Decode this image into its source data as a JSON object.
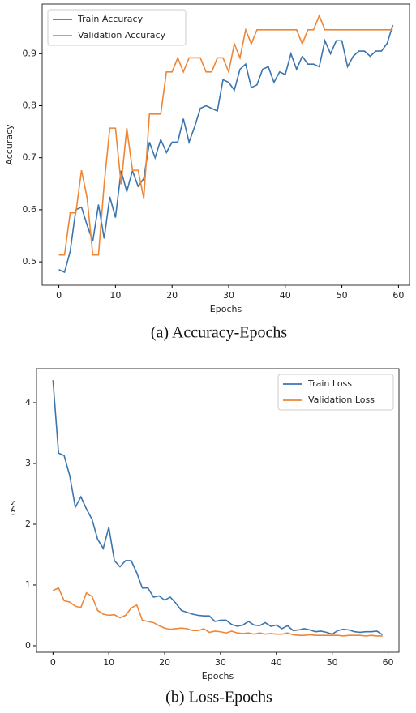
{
  "chart_data": [
    {
      "type": "line",
      "caption": "(a)  Accuracy-Epochs",
      "xlabel": "Epochs",
      "ylabel": "Accuracy",
      "x": [
        0,
        1,
        2,
        3,
        4,
        5,
        6,
        7,
        8,
        9,
        10,
        11,
        12,
        13,
        14,
        15,
        16,
        17,
        18,
        19,
        20,
        21,
        22,
        23,
        24,
        25,
        26,
        27,
        28,
        29,
        30,
        31,
        32,
        33,
        34,
        35,
        36,
        37,
        38,
        39,
        40,
        41,
        42,
        43,
        44,
        45,
        46,
        47,
        48,
        49,
        50,
        51,
        52,
        53,
        54,
        55,
        56,
        57,
        58,
        59
      ],
      "series": [
        {
          "name": "Train Accuracy",
          "color": "#3b75af",
          "values": [
            0.485,
            0.48,
            0.52,
            0.6,
            0.605,
            0.57,
            0.54,
            0.61,
            0.545,
            0.625,
            0.585,
            0.675,
            0.635,
            0.675,
            0.645,
            0.66,
            0.73,
            0.7,
            0.735,
            0.71,
            0.73,
            0.73,
            0.775,
            0.73,
            0.76,
            0.795,
            0.8,
            0.795,
            0.79,
            0.85,
            0.845,
            0.83,
            0.87,
            0.88,
            0.835,
            0.84,
            0.87,
            0.875,
            0.845,
            0.865,
            0.86,
            0.9,
            0.87,
            0.895,
            0.88,
            0.88,
            0.875,
            0.925,
            0.9,
            0.925,
            0.925,
            0.875,
            0.895,
            0.905,
            0.905,
            0.895,
            0.905,
            0.905,
            0.92,
            0.955
          ]
        },
        {
          "name": "Validation Accuracy",
          "color": "#ef8636",
          "values": [
            0.513,
            0.513,
            0.594,
            0.594,
            0.676,
            0.622,
            0.513,
            0.513,
            0.649,
            0.757,
            0.757,
            0.649,
            0.757,
            0.676,
            0.676,
            0.622,
            0.784,
            0.784,
            0.784,
            0.865,
            0.865,
            0.892,
            0.865,
            0.892,
            0.892,
            0.892,
            0.865,
            0.865,
            0.892,
            0.892,
            0.865,
            0.919,
            0.892,
            0.946,
            0.919,
            0.946,
            0.946,
            0.946,
            0.946,
            0.946,
            0.946,
            0.946,
            0.946,
            0.919,
            0.946,
            0.946,
            0.973,
            0.946,
            0.946,
            0.946,
            0.946,
            0.946,
            0.946,
            0.946,
            0.946,
            0.946,
            0.946,
            0.946,
            0.946,
            0.946
          ]
        }
      ],
      "xlim": [
        -2.95,
        61.95
      ],
      "xticks": [
        0,
        10,
        20,
        30,
        40,
        50,
        60
      ],
      "ylim": [
        0.455,
        0.9955
      ],
      "yticks": [
        0.5,
        0.6,
        0.7,
        0.8,
        0.9
      ],
      "legend": "upper left"
    },
    {
      "type": "line",
      "caption": "(b)  Loss-Epochs",
      "xlabel": "Epochs",
      "ylabel": "Loss",
      "x": [
        0,
        1,
        2,
        3,
        4,
        5,
        6,
        7,
        8,
        9,
        10,
        11,
        12,
        13,
        14,
        15,
        16,
        17,
        18,
        19,
        20,
        21,
        22,
        23,
        24,
        25,
        26,
        27,
        28,
        29,
        30,
        31,
        32,
        33,
        34,
        35,
        36,
        37,
        38,
        39,
        40,
        41,
        42,
        43,
        44,
        45,
        46,
        47,
        48,
        49,
        50,
        51,
        52,
        53,
        54,
        55,
        56,
        57,
        58,
        59
      ],
      "series": [
        {
          "name": "Train Loss",
          "color": "#3b75af",
          "values": [
            4.37,
            3.17,
            3.13,
            2.8,
            2.28,
            2.45,
            2.25,
            2.08,
            1.75,
            1.6,
            1.95,
            1.4,
            1.3,
            1.4,
            1.4,
            1.2,
            0.95,
            0.95,
            0.8,
            0.82,
            0.75,
            0.8,
            0.7,
            0.58,
            0.55,
            0.52,
            0.5,
            0.49,
            0.49,
            0.4,
            0.42,
            0.42,
            0.35,
            0.32,
            0.34,
            0.4,
            0.34,
            0.33,
            0.38,
            0.32,
            0.34,
            0.28,
            0.33,
            0.25,
            0.26,
            0.28,
            0.26,
            0.23,
            0.24,
            0.22,
            0.19,
            0.25,
            0.27,
            0.26,
            0.23,
            0.22,
            0.23,
            0.23,
            0.24,
            0.18
          ]
        },
        {
          "name": "Validation Loss",
          "color": "#ef8636",
          "values": [
            0.91,
            0.95,
            0.74,
            0.72,
            0.65,
            0.63,
            0.87,
            0.81,
            0.58,
            0.52,
            0.5,
            0.51,
            0.46,
            0.5,
            0.62,
            0.67,
            0.42,
            0.4,
            0.38,
            0.33,
            0.29,
            0.27,
            0.28,
            0.29,
            0.28,
            0.25,
            0.25,
            0.28,
            0.22,
            0.24,
            0.23,
            0.21,
            0.24,
            0.21,
            0.2,
            0.21,
            0.19,
            0.21,
            0.19,
            0.2,
            0.19,
            0.19,
            0.21,
            0.18,
            0.17,
            0.17,
            0.18,
            0.17,
            0.17,
            0.17,
            0.17,
            0.17,
            0.16,
            0.17,
            0.17,
            0.17,
            0.16,
            0.17,
            0.16,
            0.16
          ]
        }
      ],
      "xlim": [
        -2.95,
        61.95
      ],
      "xticks": [
        0,
        10,
        20,
        30,
        40,
        50,
        60
      ],
      "ylim": [
        -0.107,
        4.56
      ],
      "yticks": [
        0,
        1,
        2,
        3,
        4
      ],
      "legend": "upper right"
    }
  ]
}
